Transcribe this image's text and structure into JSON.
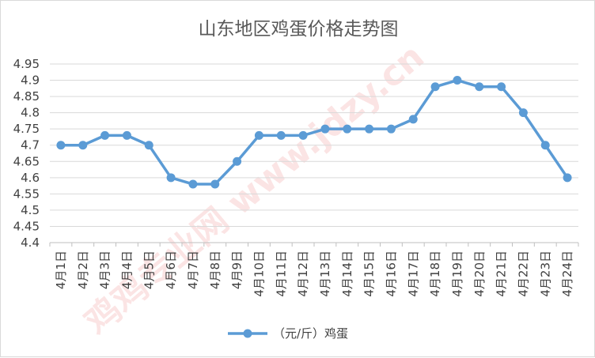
{
  "chart_data": {
    "type": "line",
    "title": "山东地区鸡蛋价格走势图",
    "xlabel": "",
    "ylabel": "",
    "categories": [
      "4月1日",
      "4月2日",
      "4月3日",
      "4月4日",
      "4月5日",
      "4月6日",
      "4月7日",
      "4月8日",
      "4月9日",
      "4月10日",
      "4月11日",
      "4月12日",
      "4月13日",
      "4月14日",
      "4月15日",
      "4月16日",
      "4月17日",
      "4月18日",
      "4月19日",
      "4月20日",
      "4月21日",
      "4月22日",
      "4月23日",
      "4月24日"
    ],
    "series": [
      {
        "name": "（元/斤）鸡蛋",
        "values": [
          4.7,
          4.7,
          4.73,
          4.73,
          4.7,
          4.6,
          4.58,
          4.58,
          4.65,
          4.73,
          4.73,
          4.73,
          4.75,
          4.75,
          4.75,
          4.75,
          4.78,
          4.88,
          4.9,
          4.88,
          4.88,
          4.8,
          4.7,
          4.6
        ]
      }
    ],
    "yticks": [
      "4.4",
      "4.45",
      "4.5",
      "4.55",
      "4.6",
      "4.65",
      "4.7",
      "4.75",
      "4.8",
      "4.85",
      "4.9",
      "4.95"
    ],
    "ylim": [
      4.4,
      4.95
    ],
    "grid": true,
    "legend_position": "bottom",
    "series_color": "#5b9bd5"
  },
  "watermark": {
    "text": "鸡鸡专业网 www.jdzy.cn",
    "color": "#e06060"
  }
}
